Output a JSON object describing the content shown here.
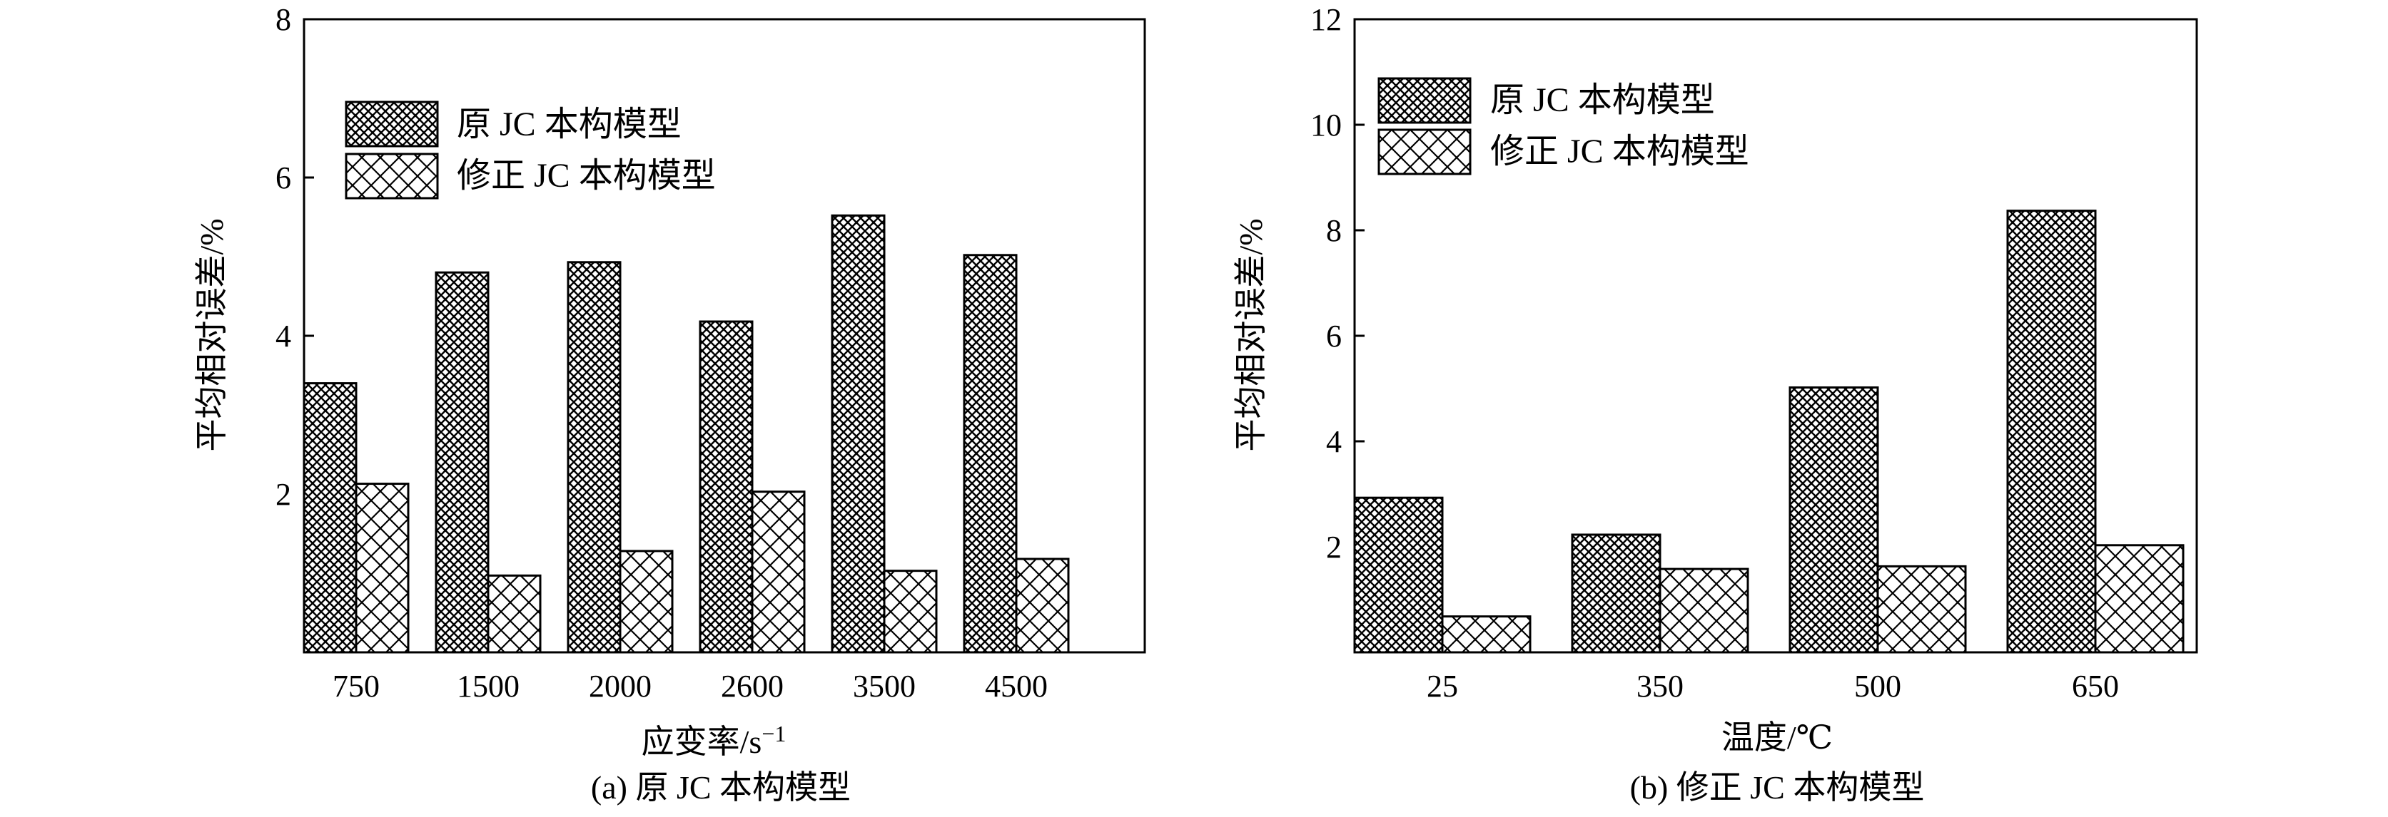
{
  "chart_data": [
    {
      "type": "bar",
      "caption": "(a) 原 JC 本构模型",
      "xlabel": "应变率/s",
      "xlabel_sup": "−1",
      "ylabel": "平均相对误差/%",
      "ylim": [
        0,
        8
      ],
      "yticks": [
        2,
        4,
        6,
        8
      ],
      "categories": [
        "750",
        "1500",
        "2000",
        "2600",
        "3500",
        "4500"
      ],
      "series": [
        {
          "name": "原 JC 本构模型",
          "values": [
            3.4,
            4.8,
            4.93,
            4.18,
            5.52,
            5.02
          ]
        },
        {
          "name": "修正 JC 本构模型",
          "values": [
            2.13,
            0.97,
            1.28,
            2.03,
            1.03,
            1.18
          ]
        }
      ],
      "legend": "top-left"
    },
    {
      "type": "bar",
      "caption": "(b) 修正 JC 本构模型",
      "xlabel": "温度/℃",
      "ylabel": "平均相对误差/%",
      "ylim": [
        0,
        12
      ],
      "yticks": [
        2,
        4,
        6,
        8,
        10,
        12
      ],
      "categories": [
        "25",
        "350",
        "500",
        "650"
      ],
      "series": [
        {
          "name": "原 JC 本构模型",
          "values": [
            2.93,
            2.23,
            5.02,
            8.37
          ]
        },
        {
          "name": "修正 JC 本构模型",
          "values": [
            0.68,
            1.58,
            1.63,
            2.03
          ]
        }
      ],
      "legend": "top-left"
    }
  ]
}
